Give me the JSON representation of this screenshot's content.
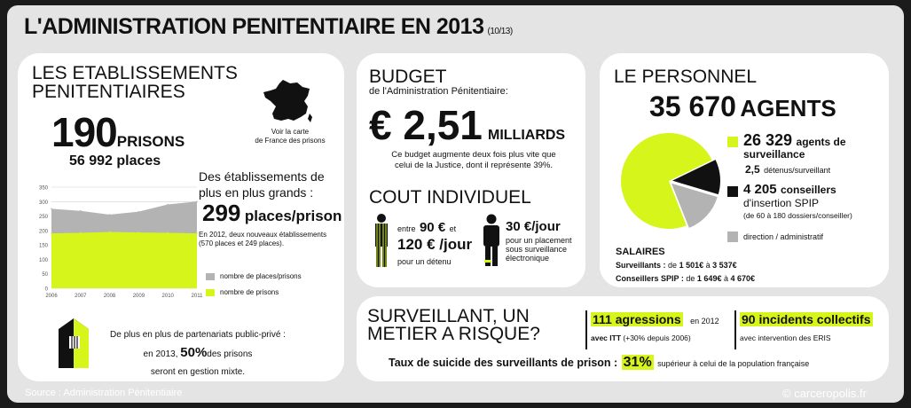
{
  "title": "L'ADMINISTRATION PENITENTIAIRE EN 2013",
  "title_sub": "(10/13)",
  "colors": {
    "lime": "#d6f51a",
    "gray": "#b3b3b3",
    "dark": "#111111"
  },
  "etab": {
    "heading_line1": "LES ETABLISSEMENTS",
    "heading_line2": "PENITENTIAIRES",
    "prisons_num": "190",
    "prisons_label": "PRISONS",
    "places": "56 992 places",
    "map_icon": "france-map-icon",
    "map_line1": "Voir la carte",
    "map_line2": "de France des prisons",
    "bigger_line1": "Des établissements de",
    "bigger_line2": "plus en plus grands :",
    "ppp_num": "299",
    "ppp_label": "places/prison",
    "note_line1": "En 2012, deux nouveaux établissements",
    "note_line2": "(570 places et 249 places).",
    "legend1": "nombre de places/prisons",
    "legend2": "nombre de prisons",
    "ppp_text1": "De plus en plus de partenariats public-privé :",
    "ppp_text2a": "en 2013,",
    "ppp_text2b": "50%",
    "ppp_text2c": "des prisons",
    "ppp_text3": "seront en gestion mixte."
  },
  "chart_data": {
    "type": "area",
    "x": [
      "2006",
      "2007",
      "2008",
      "2009",
      "2010",
      "2011"
    ],
    "y_ticks": [
      "0",
      "50",
      "100",
      "150",
      "200",
      "250",
      "300",
      "350"
    ],
    "ylim": [
      0,
      350
    ],
    "series": [
      {
        "name": "nombre de places/prisons",
        "color": "#b3b3b3",
        "values": [
          275,
          268,
          255,
          265,
          290,
          300
        ]
      },
      {
        "name": "nombre de prisons",
        "color": "#d6f51a",
        "values": [
          190,
          192,
          195,
          193,
          192,
          190
        ]
      }
    ],
    "grid": true
  },
  "budget": {
    "heading": "BUDGET",
    "subheading": "de l'Administration Pénitentiaire:",
    "amount": "€ 2,51",
    "unit": "MILLIARDS",
    "text_line1": "Ce budget augmente deux fois plus vite que",
    "text_line2": "celui de la Justice, dont il représente 39%.",
    "cost_heading": "COUT INDIVIDUEL",
    "cost_entre": "entre",
    "cost_v1": "90 €",
    "cost_et": "et",
    "cost_v2": "120 € /jour",
    "cost_sub": "pour un détenu",
    "cost2": "30 €/jour",
    "cost2_line1": "pour un placement",
    "cost2_line2": "sous surveillance",
    "cost2_line3": "électronique"
  },
  "personnel": {
    "heading": "LE PERSONNEL",
    "agents_num": "35 670",
    "agents_label": "AGENTS",
    "surv_num": "26 329",
    "surv_label1": "agents de",
    "surv_label2": "surveillance",
    "surv_ratio_num": "2,5",
    "surv_ratio": "détenus/surveillant",
    "spip_num": "4 205",
    "spip_label1": "conseillers",
    "spip_label2": "d'insertion SPIP",
    "spip_sub": "(de 60 à 180 dossiers/conseiller)",
    "admin": "direction / administratif",
    "pie": [
      26329,
      4205,
      5136
    ],
    "salaires": "SALAIRES",
    "sal1_label": "Surveillants :",
    "sal1_de": "de",
    "sal1_a": "1 501€",
    "sal1_mid": "à",
    "sal1_b": "3 537€",
    "sal2_label": "Conseillers SPIP :",
    "sal2_de": "de",
    "sal2_a": "1 649€",
    "sal2_mid": "à",
    "sal2_b": "4 670€"
  },
  "risque": {
    "heading_line1": "SURVEILLANT, UN",
    "heading_line2": "METIER A RISQUE?",
    "aggr_num": "111 agressions",
    "aggr_year": "en 2012",
    "aggr_itt": "avec ITT",
    "aggr_itt_sub": "(+30% depuis 2006)",
    "incidents": "90 incidents collectifs",
    "incidents_sub": "avec intervention des ERIS",
    "suicide_text": "Taux de suicide des surveillants de prison :",
    "suicide_pct": "31%",
    "suicide_tail": "supérieur à celui de la population française"
  },
  "source": "Source : Administration Pénitentiaire",
  "credit": "© carceropolis.fr"
}
